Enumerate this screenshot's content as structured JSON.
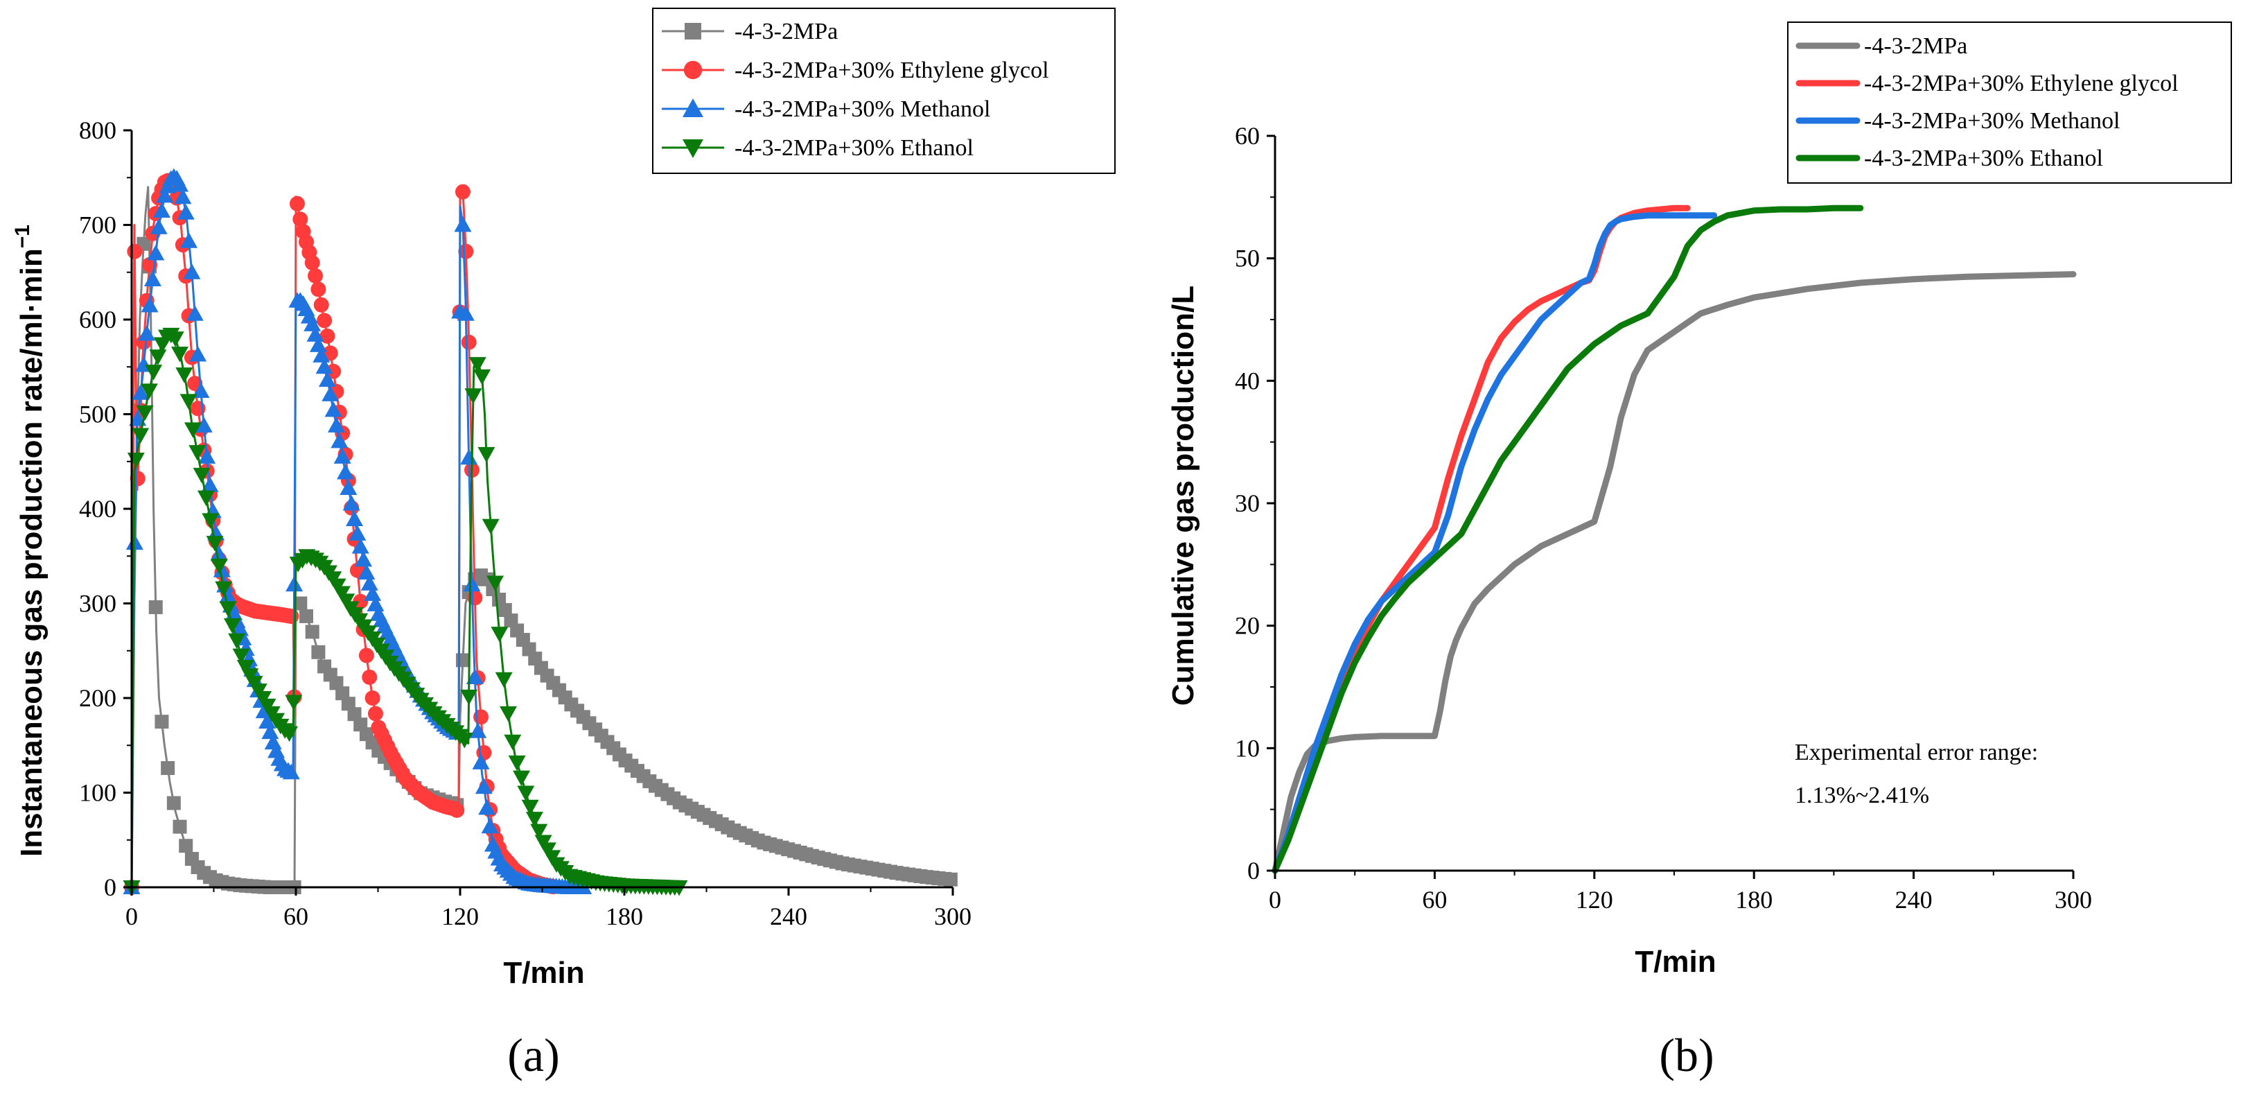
{
  "chart_data": [
    {
      "type": "line",
      "panel_label": "(a)",
      "title": "",
      "xlabel": "T/min",
      "ylabel": "Instantaneous gas production rate/ml·min",
      "ylabel_sup": "−1",
      "xlim": [
        0,
        300
      ],
      "ylim": [
        0,
        800
      ],
      "xticks": [
        0,
        60,
        120,
        180,
        240,
        300
      ],
      "yticks": [
        0,
        100,
        200,
        300,
        400,
        500,
        600,
        700,
        800
      ],
      "grid": false,
      "legend_position": "top-right",
      "series": [
        {
          "name": "-4-3-2MPa",
          "color": "#808080",
          "marker": "square",
          "x": [
            0,
            1,
            2,
            3,
            4,
            5,
            6,
            7,
            8,
            9,
            10,
            12,
            14,
            16,
            18,
            20,
            22,
            25,
            30,
            35,
            40,
            45,
            50,
            55,
            59,
            59.5,
            60,
            62,
            64,
            66,
            68,
            70,
            75,
            80,
            85,
            90,
            95,
            100,
            105,
            110,
            115,
            118,
            119.5,
            120,
            122,
            124,
            126,
            128,
            130,
            135,
            140,
            150,
            160,
            170,
            180,
            190,
            200,
            210,
            220,
            230,
            240,
            250,
            260,
            270,
            280,
            290,
            300
          ],
          "y": [
            0,
            300,
            480,
            600,
            660,
            710,
            740,
            600,
            400,
            270,
            200,
            150,
            110,
            80,
            60,
            42,
            30,
            18,
            8,
            4,
            2,
            1,
            0,
            0,
            0,
            0,
            300,
            300,
            285,
            270,
            250,
            235,
            215,
            190,
            165,
            145,
            130,
            115,
            100,
            95,
            90,
            88,
            86,
            180,
            300,
            320,
            328,
            330,
            325,
            300,
            275,
            230,
            195,
            165,
            135,
            110,
            90,
            75,
            60,
            48,
            40,
            32,
            25,
            20,
            15,
            11,
            8
          ]
        },
        {
          "name": "-4-3-2MPa+30% Ethylene glycol",
          "color": "#ff3b3b",
          "marker": "circle",
          "x": [
            0,
            1,
            2,
            3,
            4,
            5,
            6,
            8,
            10,
            12,
            14,
            16,
            18,
            20,
            22,
            24,
            26,
            28,
            30,
            32,
            34,
            36,
            38,
            40,
            45,
            50,
            55,
            59,
            59.5,
            60,
            62,
            64,
            66,
            68,
            70,
            72,
            74,
            76,
            78,
            80,
            82,
            84,
            86,
            88,
            90,
            95,
            100,
            105,
            110,
            115,
            118,
            119.5,
            120,
            121,
            122,
            123,
            124,
            125,
            126,
            128,
            130,
            132,
            135,
            140,
            145,
            150,
            155
          ],
          "y": [
            0,
            700,
            420,
            480,
            560,
            600,
            640,
            700,
            730,
            745,
            748,
            738,
            700,
            640,
            560,
            510,
            470,
            430,
            380,
            345,
            320,
            305,
            300,
            297,
            292,
            290,
            288,
            286,
            180,
            730,
            700,
            680,
            660,
            635,
            605,
            575,
            540,
            500,
            460,
            410,
            350,
            290,
            240,
            200,
            170,
            140,
            115,
            100,
            90,
            85,
            83,
            80,
            740,
            735,
            680,
            600,
            480,
            350,
            240,
            165,
            100,
            60,
            35,
            18,
            8,
            3,
            0
          ]
        },
        {
          "name": "-4-3-2MPa+30% Methanol",
          "color": "#1f74e0",
          "marker": "triangle-up",
          "x": [
            0,
            1,
            2,
            4,
            6,
            8,
            10,
            12,
            14,
            16,
            18,
            20,
            22,
            24,
            26,
            28,
            30,
            32,
            34,
            36,
            38,
            40,
            42,
            44,
            46,
            48,
            50,
            52,
            54,
            56,
            58,
            59,
            60,
            62,
            64,
            66,
            68,
            70,
            72,
            74,
            76,
            78,
            80,
            82,
            84,
            86,
            88,
            90,
            95,
            100,
            105,
            110,
            115,
            118,
            119.5,
            120,
            121,
            122,
            123,
            124,
            125,
            126,
            128,
            130,
            132,
            135,
            140,
            145,
            150,
            155,
            160,
            165
          ],
          "y": [
            0,
            350,
            490,
            540,
            600,
            650,
            700,
            730,
            748,
            752,
            740,
            710,
            650,
            570,
            500,
            440,
            390,
            350,
            320,
            300,
            285,
            270,
            250,
            230,
            210,
            190,
            170,
            150,
            135,
            125,
            122,
            120,
            620,
            620,
            610,
            595,
            575,
            555,
            530,
            500,
            470,
            440,
            410,
            380,
            355,
            330,
            310,
            290,
            260,
            230,
            205,
            185,
            170,
            165,
            162,
            720,
            700,
            620,
            480,
            350,
            250,
            180,
            120,
            80,
            45,
            25,
            10,
            4,
            2,
            1,
            0,
            0
          ]
        },
        {
          "name": "-4-3-2MPa+30% Ethanol",
          "color": "#0a7a0a",
          "marker": "triangle-down",
          "x": [
            0,
            1,
            2,
            4,
            6,
            8,
            10,
            12,
            14,
            16,
            18,
            20,
            22,
            24,
            26,
            28,
            30,
            32,
            34,
            36,
            38,
            40,
            42,
            44,
            46,
            48,
            50,
            52,
            54,
            56,
            58,
            59,
            60,
            62,
            64,
            66,
            68,
            70,
            72,
            74,
            76,
            78,
            80,
            85,
            90,
            95,
            100,
            105,
            110,
            115,
            120,
            122,
            123,
            124,
            125,
            126,
            127,
            128,
            129,
            130,
            132,
            134,
            136,
            138,
            140,
            145,
            150,
            155,
            160,
            170,
            180,
            190,
            200
          ],
          "y": [
            0,
            440,
            460,
            490,
            520,
            545,
            565,
            580,
            585,
            580,
            560,
            530,
            490,
            460,
            430,
            400,
            370,
            340,
            310,
            285,
            265,
            245,
            230,
            220,
            210,
            200,
            190,
            180,
            172,
            166,
            162,
            160,
            340,
            345,
            350,
            348,
            345,
            340,
            333,
            325,
            315,
            305,
            295,
            275,
            255,
            235,
            218,
            200,
            185,
            172,
            160,
            155,
            152,
            400,
            550,
            555,
            550,
            540,
            500,
            430,
            350,
            280,
            220,
            175,
            140,
            90,
            50,
            25,
            12,
            5,
            2,
            1,
            0
          ]
        }
      ]
    },
    {
      "type": "line",
      "panel_label": "(b)",
      "title": "",
      "xlabel": "T/min",
      "ylabel": "Cumulative gas production/L",
      "xlim": [
        0,
        300
      ],
      "ylim": [
        0,
        60
      ],
      "xticks": [
        0,
        60,
        120,
        180,
        240,
        300
      ],
      "yticks": [
        0,
        10,
        20,
        30,
        40,
        50,
        60
      ],
      "grid": false,
      "legend_position": "top-right",
      "annotation_line1": "Experimental error range:",
      "annotation_line2": "1.13%~2.41%",
      "series": [
        {
          "name": "-4-3-2MPa",
          "color": "#808080",
          "x": [
            0,
            3,
            6,
            9,
            12,
            15,
            20,
            25,
            30,
            40,
            50,
            60,
            62,
            64,
            66,
            68,
            70,
            75,
            80,
            90,
            100,
            110,
            120,
            122,
            124,
            126,
            128,
            130,
            135,
            140,
            150,
            160,
            170,
            180,
            200,
            220,
            240,
            260,
            280,
            300
          ],
          "y": [
            0,
            3,
            6,
            8,
            9.5,
            10.2,
            10.6,
            10.8,
            10.9,
            11,
            11,
            11,
            13,
            15.5,
            17.5,
            18.8,
            19.8,
            21.8,
            23,
            25,
            26.5,
            27.5,
            28.5,
            30,
            31.5,
            33,
            35,
            37,
            40.5,
            42.5,
            44,
            45.5,
            46.2,
            46.8,
            47.5,
            48,
            48.3,
            48.5,
            48.6,
            48.7
          ]
        },
        {
          "name": "-4-3-2MPa+30% Ethylene glycol",
          "color": "#ff3b3b",
          "x": [
            0,
            5,
            10,
            15,
            20,
            25,
            30,
            35,
            40,
            45,
            50,
            55,
            60,
            65,
            70,
            75,
            80,
            85,
            90,
            95,
            100,
            105,
            110,
            115,
            118,
            120,
            122,
            124,
            126,
            128,
            130,
            135,
            140,
            145,
            150,
            155
          ],
          "y": [
            0,
            3,
            6.5,
            9.5,
            12.5,
            15.5,
            18,
            20,
            22,
            23.5,
            25,
            26.5,
            28,
            32,
            35.5,
            38.5,
            41.5,
            43.5,
            44.8,
            45.8,
            46.5,
            47,
            47.5,
            48,
            48.2,
            49,
            50.5,
            51.8,
            52.5,
            53,
            53.3,
            53.7,
            53.9,
            54,
            54.1,
            54.1
          ]
        },
        {
          "name": "-4-3-2MPa+30% Methanol",
          "color": "#1f74e0",
          "x": [
            0,
            5,
            10,
            15,
            20,
            25,
            30,
            35,
            40,
            45,
            50,
            55,
            60,
            65,
            70,
            75,
            80,
            85,
            90,
            95,
            100,
            105,
            110,
            115,
            118,
            120,
            122,
            124,
            126,
            128,
            130,
            135,
            140,
            145,
            150,
            155,
            160,
            165
          ],
          "y": [
            0,
            3,
            6.5,
            10,
            13,
            16,
            18.5,
            20.5,
            22,
            23,
            24,
            25,
            26,
            29,
            33,
            36,
            38.5,
            40.5,
            42,
            43.5,
            45,
            46,
            47,
            48,
            48.3,
            49.5,
            51,
            52,
            52.7,
            53,
            53.2,
            53.4,
            53.5,
            53.5,
            53.5,
            53.5,
            53.5,
            53.5
          ]
        },
        {
          "name": "-4-3-2MPa+30% Ethanol",
          "color": "#0a7a0a",
          "x": [
            0,
            5,
            10,
            15,
            20,
            25,
            30,
            35,
            40,
            45,
            50,
            55,
            60,
            65,
            70,
            75,
            80,
            85,
            90,
            100,
            110,
            115,
            120,
            130,
            140,
            145,
            150,
            155,
            160,
            165,
            170,
            180,
            190,
            200,
            210,
            220
          ],
          "y": [
            0,
            2.5,
            5.5,
            8.5,
            11.5,
            14.5,
            17,
            19,
            20.8,
            22.2,
            23.5,
            24.5,
            25.5,
            26.5,
            27.5,
            29.5,
            31.5,
            33.5,
            35,
            38,
            41,
            42,
            43,
            44.5,
            45.5,
            47,
            48.5,
            51,
            52.3,
            53,
            53.5,
            53.9,
            54,
            54,
            54.1,
            54.1
          ]
        }
      ]
    }
  ]
}
